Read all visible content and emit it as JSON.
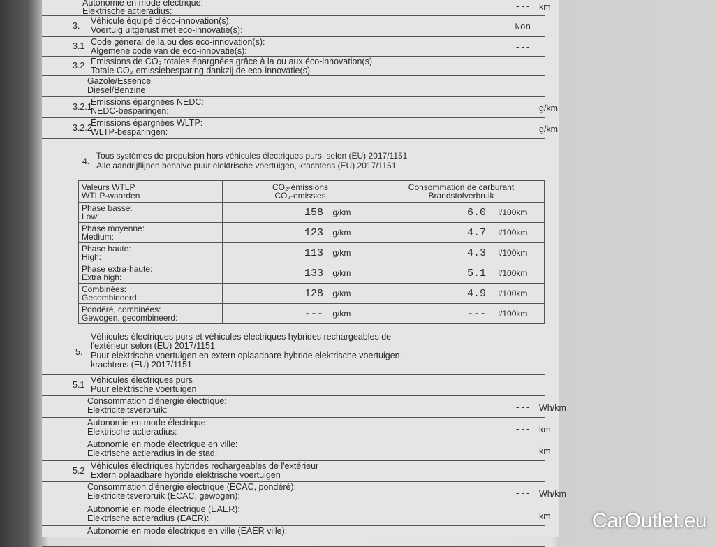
{
  "top_row": {
    "fr": "Autonomie en mode électrique:",
    "nl": "Elektrische actieradius:",
    "value": "---",
    "unit": "km"
  },
  "section3": [
    {
      "num": "3.",
      "fr": "Véhicule équipé d'éco-innovation(s):",
      "nl": "Voertuig uitgerust met eco-innovatie(s):",
      "value": "Non",
      "unit": ""
    },
    {
      "num": "3.1",
      "fr": "Code géneral de la ou des eco-innovation(s):",
      "nl": "Algemene code van de eco-innovatie(s):",
      "value": "---",
      "unit": ""
    },
    {
      "num": "3.2",
      "fr": "Émissions de CO₂ totales épargnées grâce à la ou aux éco-innovation(s)",
      "nl": "Totale CO₂-emissiebesparing dankzij de eco-innovatie(s)",
      "value": "",
      "unit": ""
    },
    {
      "num": "",
      "fr": "Gazole/Essence",
      "nl": "Diesel/Benzine",
      "value": "---",
      "unit": ""
    },
    {
      "num": "3.2.1",
      "fr": "Émissions épargnées NEDC:",
      "nl": "NEDC-besparingen:",
      "value": "---",
      "unit": "g/km"
    },
    {
      "num": "3.2.2",
      "fr": "Émissions épargnées WLTP:",
      "nl": "WLTP-besparingen:",
      "value": "---",
      "unit": "g/km"
    }
  ],
  "section4": {
    "num": "4.",
    "fr": "Tous systèmes de propulsion hors véhicules électriques purs, selon (EU) 2017/1151",
    "nl": "Alle aandrijflijnen behalve puur elektrische voertuigen, krachtens (EU) 2017/1151",
    "headers": [
      [
        "Valeurs WTLP",
        "WTLP-waarden"
      ],
      [
        "CO₂-émissions",
        "CO₂-emissies"
      ],
      [
        "Consommation de carburant",
        "Brandstofverbruik"
      ]
    ],
    "rows": [
      {
        "fr": "Phase basse:",
        "nl": "Low:",
        "co2": "158",
        "co2_unit": "g/km",
        "fuel": "6.0",
        "fuel_unit": "l/100km"
      },
      {
        "fr": "Phase moyenne:",
        "nl": "Medium:",
        "co2": "123",
        "co2_unit": "g/km",
        "fuel": "4.7",
        "fuel_unit": "l/100km"
      },
      {
        "fr": "Phase haute:",
        "nl": "High:",
        "co2": "113",
        "co2_unit": "g/km",
        "fuel": "4.3",
        "fuel_unit": "l/100km"
      },
      {
        "fr": "Phase extra-haute:",
        "nl": "Extra high:",
        "co2": "133",
        "co2_unit": "g/km",
        "fuel": "5.1",
        "fuel_unit": "l/100km"
      },
      {
        "fr": "Combinées:",
        "nl": "Gecombineerd:",
        "co2": "128",
        "co2_unit": "g/km",
        "fuel": "4.9",
        "fuel_unit": "l/100km"
      },
      {
        "fr": "Pondéré, combinées:",
        "nl": "Gewogen, gecombineerd:",
        "co2": "---",
        "co2_unit": "g/km",
        "fuel": "---",
        "fuel_unit": "l/100km"
      }
    ]
  },
  "section5": {
    "num": "5.",
    "fr1": "Véhicules électriques purs et véhicules électriques hybrides rechargeables de",
    "fr2": "l'extérieur selon (EU) 2017/1151",
    "nl1": "Puur elektrische voertuigen en extern oplaadbare hybride elektrische voertuigen,",
    "nl2": "krachtens (EU) 2017/1151",
    "rows": [
      {
        "num": "5.1",
        "fr": "Véhicules électriques purs",
        "nl": "Puur elektrische voertuigen",
        "value": "",
        "unit": ""
      },
      {
        "num": "",
        "fr": "Consommation d'énergie électrique:",
        "nl": "Elektriciteitsverbruik:",
        "value": "---",
        "unit": "Wh/km"
      },
      {
        "num": "",
        "fr": "Autonomie en mode électrique:",
        "nl": "Elektrische actieradius:",
        "value": "---",
        "unit": "km"
      },
      {
        "num": "",
        "fr": "Autonomie en mode électrique en ville:",
        "nl": "Elektrische actieradius in de stad:",
        "value": "---",
        "unit": "km"
      },
      {
        "num": "5.2",
        "fr": "Véhicules électriques hybrides rechargeables de l'extérieur",
        "nl": "Extern oplaadbare hybride elektrische voertuigen",
        "value": "",
        "unit": ""
      },
      {
        "num": "",
        "fr": "Consommation d'énergie électrique (ECAC, pondéré):",
        "nl": "Elektriciteitsverbruik (ECAC, gewogen):",
        "value": "---",
        "unit": "Wh/km"
      },
      {
        "num": "",
        "fr": "Autonomie en mode électrique (EAER):",
        "nl": "Elektrische actieradius (EAER):",
        "value": "---",
        "unit": "km"
      },
      {
        "num": "",
        "fr": "Autonomie en mode électrique en ville (EAER ville):",
        "nl": "",
        "value": "",
        "unit": ""
      }
    ]
  },
  "watermark": "CarOutlet.eu"
}
